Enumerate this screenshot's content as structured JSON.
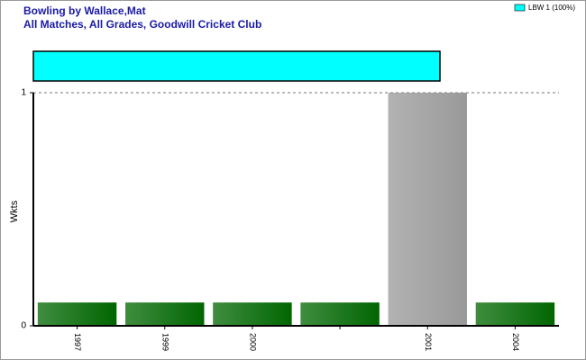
{
  "chart_data": [
    {
      "type": "stacked-hbar",
      "series": [
        {
          "name": "LBW 1 (100%)",
          "color": "#00ffff",
          "values": [
            100
          ]
        }
      ],
      "xlim": [
        0,
        100
      ]
    },
    {
      "type": "bar",
      "title": "Bowling by Wallace,Mat",
      "subtitle": "All Matches, All Grades, Goodwill Cricket Club",
      "y_label": "Wkts",
      "categories": [
        "1997",
        "1999",
        "2000",
        null,
        "2001",
        "2004"
      ],
      "values": [
        0.1,
        0.1,
        0.1,
        0.1,
        1,
        0.1
      ],
      "colors": [
        "#006600",
        "#006600",
        "#006600",
        "#006600",
        "#999999",
        "#006600"
      ],
      "ylim": [
        0,
        1
      ],
      "yticks": [
        0,
        1
      ],
      "grid": true
    }
  ]
}
